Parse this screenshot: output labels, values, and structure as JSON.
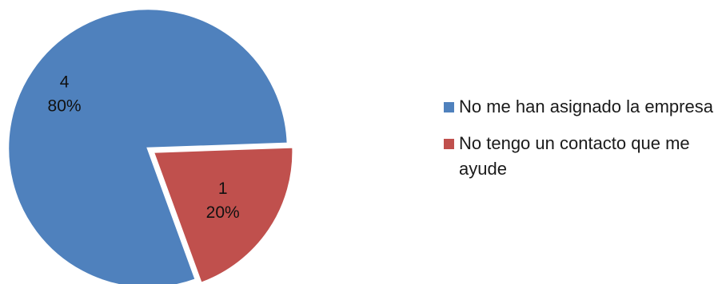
{
  "chart_data": {
    "type": "pie",
    "title": "",
    "legend_position": "right",
    "exploded_slice": 1,
    "categories": [
      "No me han asignado la empresa",
      "No tengo un contacto que me ayude"
    ],
    "values": [
      4,
      1
    ],
    "percent_labels": [
      "80%",
      "20%"
    ],
    "colors": [
      "#4f81bd",
      "#c0504d"
    ]
  }
}
